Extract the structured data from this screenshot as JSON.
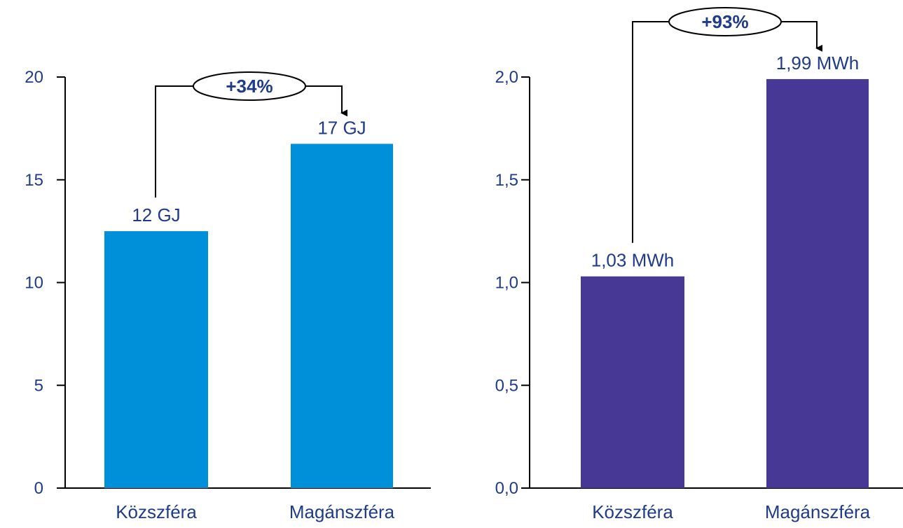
{
  "chart_data": [
    {
      "type": "bar",
      "categories": [
        "Közszféra",
        "Magánszféra"
      ],
      "values": [
        12.5,
        16.75
      ],
      "data_labels": [
        "12 GJ",
        "17 GJ"
      ],
      "yticks": [
        "0",
        "5",
        "10",
        "15",
        "20"
      ],
      "ylim": [
        0,
        20
      ],
      "color": "#0090d9",
      "change_label": "+34%",
      "grid": false
    },
    {
      "type": "bar",
      "categories": [
        "Közszféra",
        "Magánszféra"
      ],
      "values": [
        1.03,
        1.99
      ],
      "data_labels": [
        "1,03 MWh",
        "1,99 MWh"
      ],
      "yticks": [
        "0,0",
        "0,5",
        "1,0",
        "1,5",
        "2,0"
      ],
      "ylim": [
        0,
        2
      ],
      "color": "#463894",
      "change_label": "+93%",
      "grid": false
    }
  ]
}
